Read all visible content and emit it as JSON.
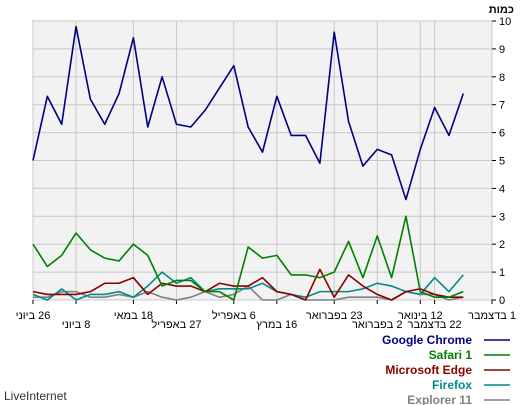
{
  "chart_data": {
    "type": "line",
    "ylabel": "כמות",
    "ylim": [
      0,
      10
    ],
    "yticks": [
      0,
      1,
      2,
      3,
      4,
      5,
      6,
      7,
      8,
      9,
      10
    ],
    "xlim": [
      0,
      32
    ],
    "xticks": [
      {
        "x": 0,
        "label": "26 ביוני"
      },
      {
        "x": 3,
        "label": "8 ביוני"
      },
      {
        "x": 7,
        "label": "18 במאי"
      },
      {
        "x": 10,
        "label": "27 באפריל"
      },
      {
        "x": 14,
        "label": "6 באפריל"
      },
      {
        "x": 17,
        "label": "16 במרץ"
      },
      {
        "x": 21,
        "label": "23 בפברואר"
      },
      {
        "x": 24,
        "label": "2 בפברואר"
      },
      {
        "x": 27,
        "label": "12 בינואר"
      },
      {
        "x": 28,
        "label": "22 בדצמבר"
      },
      {
        "x": 32,
        "label": "1 בדצמבר"
      }
    ],
    "grid": true,
    "legend_position": "bottom-right",
    "series": [
      {
        "name": "Google Chrome",
        "color": "#000080",
        "values": [
          5.0,
          7.3,
          6.3,
          9.8,
          7.2,
          6.3,
          7.4,
          9.4,
          6.2,
          8.0,
          6.3,
          6.2,
          6.8,
          7.6,
          8.4,
          6.2,
          5.3,
          7.3,
          5.9,
          5.9,
          4.9,
          9.6,
          6.4,
          4.8,
          5.4,
          5.2,
          3.6,
          5.4,
          6.9,
          5.9,
          7.4
        ]
      },
      {
        "name": "Safari 1",
        "color": "#008000",
        "values": [
          2.0,
          1.2,
          1.6,
          2.4,
          1.8,
          1.5,
          1.4,
          2.0,
          1.6,
          0.5,
          0.7,
          0.7,
          0.3,
          0.3,
          0.0,
          1.9,
          1.5,
          1.6,
          0.9,
          0.9,
          0.8,
          1.0,
          2.1,
          0.8,
          2.3,
          0.8,
          3.0,
          0.3,
          0.1,
          0.1,
          0.3
        ]
      },
      {
        "name": "Microsoft Edge",
        "color": "#8b0000",
        "values": [
          0.3,
          0.2,
          0.2,
          0.2,
          0.3,
          0.6,
          0.6,
          0.8,
          0.2,
          0.6,
          0.5,
          0.5,
          0.3,
          0.6,
          0.5,
          0.5,
          0.8,
          0.3,
          0.2,
          0.0,
          1.1,
          0.1,
          0.9,
          0.5,
          0.2,
          0.0,
          0.3,
          0.4,
          0.2,
          0.1,
          0.1
        ]
      },
      {
        "name": "Firefox",
        "color": "#008b8b",
        "values": [
          0.2,
          0.0,
          0.4,
          0.0,
          0.2,
          0.2,
          0.3,
          0.1,
          0.5,
          1.0,
          0.6,
          0.8,
          0.3,
          0.4,
          0.4,
          0.4,
          0.6,
          0.3,
          0.2,
          0.1,
          0.3,
          0.3,
          0.3,
          0.4,
          0.6,
          0.5,
          0.3,
          0.2,
          0.8,
          0.3,
          0.9
        ]
      },
      {
        "name": "Explorer 11",
        "color": "#808080",
        "values": [
          0.1,
          0.1,
          0.3,
          0.3,
          0.1,
          0.1,
          0.2,
          0.1,
          0.3,
          0.1,
          0.0,
          0.1,
          0.3,
          0.1,
          0.2,
          0.5,
          0.0,
          0.0,
          0.2,
          0.0,
          0.0,
          0.0,
          0.1,
          0.1,
          0.1,
          0.0,
          0.3,
          0.2,
          0.2,
          0.0,
          0.1
        ]
      }
    ]
  },
  "footer": {
    "brand": "LiveInternet"
  }
}
